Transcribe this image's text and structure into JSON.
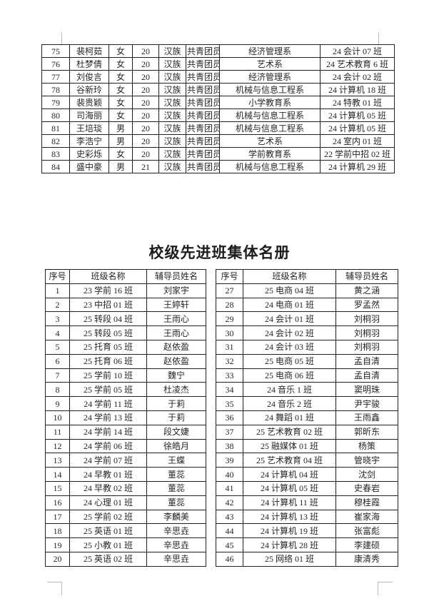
{
  "title": "校级先进班集体名册",
  "student_table": {
    "rows": [
      [
        "75",
        "裴柯茹",
        "女",
        "20",
        "汉族",
        "共青团员",
        "经济管理系",
        "24 会计 07 班"
      ],
      [
        "76",
        "杜梦倩",
        "女",
        "20",
        "汉族",
        "共青团员",
        "艺术系",
        "24 艺术教育 6 班"
      ],
      [
        "77",
        "刘俊言",
        "女",
        "20",
        "汉族",
        "共青团员",
        "经济管理系",
        "24 会计 02 班"
      ],
      [
        "78",
        "谷新玲",
        "女",
        "20",
        "汉族",
        "共青团员",
        "机械与信息工程系",
        "24 计算机 18 班"
      ],
      [
        "79",
        "裴贵颖",
        "女",
        "20",
        "汉族",
        "共青团员",
        "小学教育系",
        "24 特教 01 班"
      ],
      [
        "80",
        "司海丽",
        "女",
        "20",
        "汉族",
        "共青团员",
        "机械与信息工程系",
        "24 计算机 05 班"
      ],
      [
        "81",
        "王培琰",
        "男",
        "20",
        "汉族",
        "共青团员",
        "机械与信息工程系",
        "24 计算机 05 班"
      ],
      [
        "82",
        "李浩宁",
        "男",
        "20",
        "汉族",
        "共青团员",
        "艺术系",
        "24 室内 01 班"
      ],
      [
        "83",
        "史彩烁",
        "女",
        "20",
        "汉族",
        "共青团员",
        "学前教育系",
        "22 学前中招 02 班"
      ],
      [
        "84",
        "盛中豪",
        "男",
        "21",
        "汉族",
        "共青团员",
        "机械与信息工程系",
        "24 计算机 29 班"
      ]
    ]
  },
  "roster": {
    "columns": [
      "序号",
      "班级名称",
      "辅导员姓名"
    ],
    "left_rows": [
      [
        "1",
        "23 学前 16 班",
        "刘家宇"
      ],
      [
        "2",
        "23 中招 01 班",
        "王婷轩"
      ],
      [
        "3",
        "25 转段 04 班",
        "王雨心"
      ],
      [
        "4",
        "25 转段 05 班",
        "王雨心"
      ],
      [
        "5",
        "25 托育 05 班",
        "赵依盈"
      ],
      [
        "6",
        "25 托育 06 班",
        "赵依盈"
      ],
      [
        "7",
        "25 学前 10 班",
        "魏宁"
      ],
      [
        "8",
        "25 学前 05 班",
        "杜凌杰"
      ],
      [
        "9",
        "24 学前 11 班",
        "于莉"
      ],
      [
        "10",
        "24 学前 13 班",
        "于莉"
      ],
      [
        "11",
        "24 学前 14 班",
        "段文婕"
      ],
      [
        "12",
        "24 学前 06 班",
        "徐皓月"
      ],
      [
        "13",
        "24 学前 07 班",
        "王蝶"
      ],
      [
        "14",
        "24 早教 01 班",
        "董蕊"
      ],
      [
        "15",
        "24 早教 02 班",
        "董蕊"
      ],
      [
        "16",
        "24 心理 01 班",
        "董蕊"
      ],
      [
        "17",
        "25 学前 02 班",
        "李麟美"
      ],
      [
        "18",
        "25 英语 01 班",
        "辛思垚"
      ],
      [
        "19",
        "25 小教 01 班",
        "辛思垚"
      ],
      [
        "20",
        "25 英语 02 班",
        "辛思垚"
      ]
    ],
    "right_rows": [
      [
        "27",
        "25 电商 04 班",
        "黄之涵"
      ],
      [
        "28",
        "24 电商 01 班",
        "罗孟然"
      ],
      [
        "29",
        "24 会计 01 班",
        "刘桐羽"
      ],
      [
        "30",
        "24 会计 02 班",
        "刘桐羽"
      ],
      [
        "31",
        "24 会计 03 班",
        "刘桐羽"
      ],
      [
        "32",
        "25 电商 05 班",
        "孟自清"
      ],
      [
        "33",
        "25 电商 06 班",
        "孟自清"
      ],
      [
        "34",
        "24 音乐 1 班",
        "窦明珠"
      ],
      [
        "35",
        "24 音乐 2 班",
        "尹宇骏"
      ],
      [
        "36",
        "24 舞蹈 01 班",
        "王雨鑫"
      ],
      [
        "37",
        "25 艺术教育 02 班",
        "郭昕东"
      ],
      [
        "38",
        "25 融媒体 01 班",
        "杨策"
      ],
      [
        "39",
        "25 艺术教育 04 班",
        "管晓宇"
      ],
      [
        "40",
        "24 计算机 04 班",
        "沈剑"
      ],
      [
        "41",
        "24 计算机 05 班",
        "史春岩"
      ],
      [
        "42",
        "24 计算机 11 班",
        "穆桂霞"
      ],
      [
        "43",
        "24 计算机 13 班",
        "崔家海"
      ],
      [
        "44",
        "24 计算机 19 班",
        "张富彪"
      ],
      [
        "45",
        "24 计算机 28 班",
        "李建硕"
      ],
      [
        "46",
        "25 网络 01 班",
        "康清秀"
      ]
    ]
  }
}
